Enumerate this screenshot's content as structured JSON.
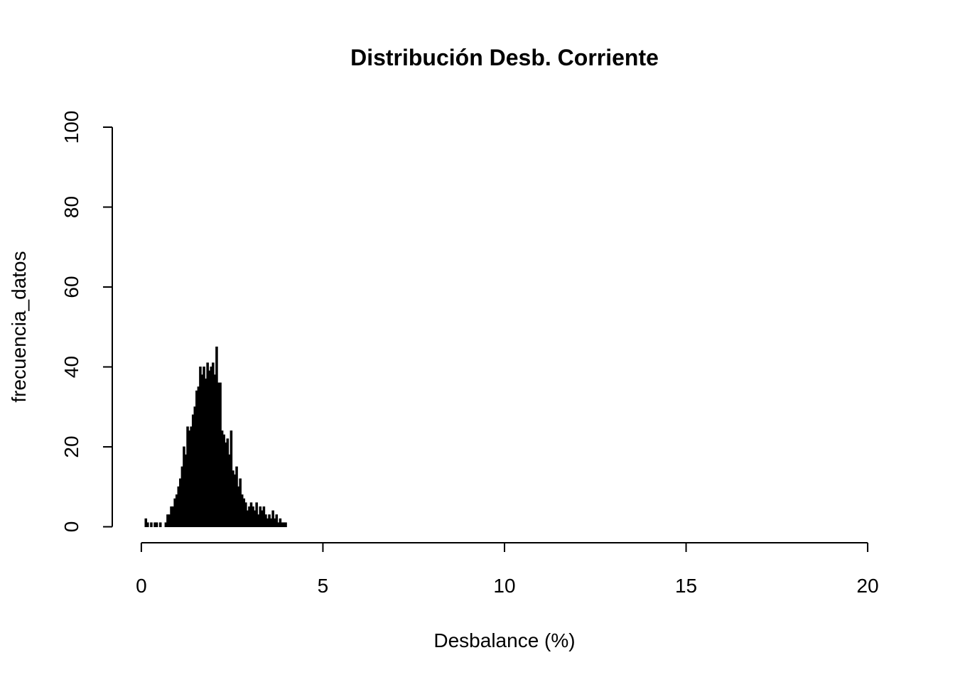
{
  "chart_data": {
    "type": "histogram",
    "title": "Distribución Desb. Corriente",
    "xlabel": "Desbalance (%)",
    "ylabel": "frecuencia_datos",
    "bins": [
      0.1,
      0.15,
      0.2,
      0.25,
      0.3,
      0.35,
      0.4,
      0.45,
      0.5,
      0.55,
      0.6,
      0.65,
      0.7,
      0.75,
      0.8,
      0.85,
      0.9,
      0.95,
      1.0,
      1.05,
      1.1,
      1.15,
      1.2,
      1.25,
      1.3,
      1.35,
      1.4,
      1.45,
      1.5,
      1.55,
      1.6,
      1.65,
      1.7,
      1.75,
      1.8,
      1.85,
      1.9,
      1.95,
      2.0,
      2.05,
      2.1,
      2.15,
      2.2,
      2.25,
      2.3,
      2.35,
      2.4,
      2.45,
      2.5,
      2.55,
      2.6,
      2.65,
      2.7,
      2.75,
      2.8,
      2.85,
      2.9,
      2.95,
      3.0,
      3.05,
      3.1,
      3.15,
      3.2,
      3.25,
      3.3,
      3.35,
      3.4,
      3.45,
      3.5,
      3.55,
      3.6,
      3.65,
      3.7,
      3.75,
      3.8,
      3.85,
      3.9,
      3.95,
      4.0
    ],
    "values": [
      2,
      1,
      0,
      1,
      0,
      1,
      1,
      0,
      1,
      0,
      0,
      1,
      3,
      3,
      5,
      5,
      7,
      8,
      10,
      12,
      15,
      20,
      18,
      25,
      24,
      25,
      28,
      30,
      34,
      35,
      40,
      38,
      40,
      37,
      41,
      39,
      40,
      41,
      38,
      45,
      36,
      36,
      24,
      23,
      21,
      22,
      18,
      24,
      14,
      13,
      15,
      10,
      12,
      8,
      7,
      6,
      4,
      5,
      6,
      5,
      4,
      6,
      3,
      5,
      4,
      5,
      3,
      2,
      3,
      2,
      4,
      2,
      3,
      1,
      2,
      1,
      1,
      1
    ],
    "color": "#000000",
    "xlim": [
      -0.8,
      20.8
    ],
    "xticks": [
      0,
      5,
      10,
      15,
      20
    ],
    "ylim": [
      -4,
      104
    ],
    "yticks": [
      0,
      20,
      40,
      60,
      80,
      100
    ]
  }
}
